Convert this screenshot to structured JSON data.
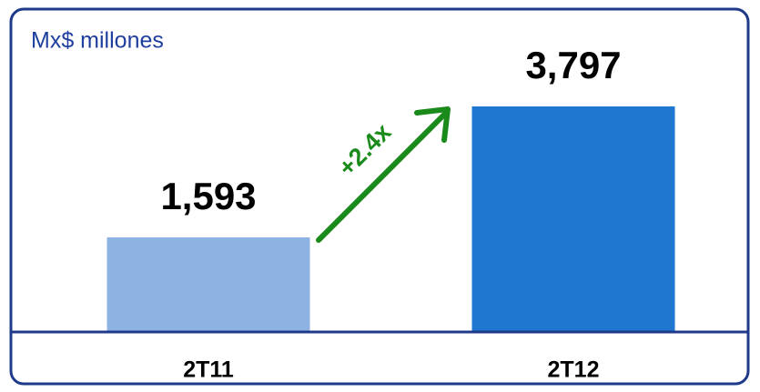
{
  "chart_data": {
    "type": "bar",
    "subtitle": "Mx$ millones",
    "categories": [
      "2T11",
      "2T12"
    ],
    "values": [
      1593,
      3797
    ],
    "value_labels": [
      "1,593",
      "3,797"
    ],
    "colors": [
      "#8db3e2",
      "#1f77d0"
    ],
    "annotations": [
      "+2.4x"
    ]
  }
}
